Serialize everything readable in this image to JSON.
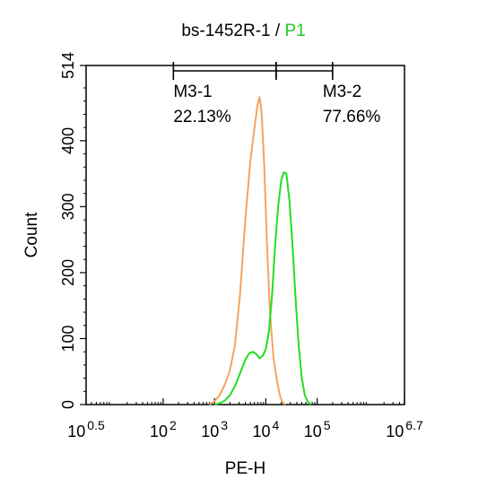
{
  "chart_data": {
    "type": "line",
    "title": {
      "sample": "bs-1452R-1",
      "separator": " / ",
      "gate": "P1",
      "gate_color": "#22cc22"
    },
    "xlabel": "PE-H",
    "ylabel": "Count",
    "x_scale": "log10",
    "xlim_exp": [
      0.5,
      6.7
    ],
    "ylim": [
      0,
      514
    ],
    "x_tick_exps": [
      0.5,
      2,
      3,
      4,
      5,
      6.7
    ],
    "x_tick_labels": [
      {
        "base": "10",
        "exp": "0.5"
      },
      {
        "base": "10",
        "exp": "2"
      },
      {
        "base": "10",
        "exp": "3"
      },
      {
        "base": "10",
        "exp": "4"
      },
      {
        "base": "10",
        "exp": "5"
      },
      {
        "base": "10",
        "exp": "6.7"
      }
    ],
    "y_ticks": [
      0,
      100,
      200,
      300,
      400,
      514
    ],
    "y_tick_labels": [
      "0",
      "100",
      "200",
      "300",
      "400",
      "514"
    ],
    "series": [
      {
        "color": "#f4a460",
        "points": [
          [
            2.9,
            0
          ],
          [
            3.0,
            5
          ],
          [
            3.1,
            14
          ],
          [
            3.2,
            30
          ],
          [
            3.3,
            52
          ],
          [
            3.4,
            90
          ],
          [
            3.5,
            170
          ],
          [
            3.6,
            280
          ],
          [
            3.7,
            370
          ],
          [
            3.78,
            420
          ],
          [
            3.84,
            455
          ],
          [
            3.88,
            466
          ],
          [
            3.92,
            440
          ],
          [
            3.97,
            360
          ],
          [
            4.02,
            250
          ],
          [
            4.08,
            140
          ],
          [
            4.15,
            70
          ],
          [
            4.22,
            35
          ],
          [
            4.28,
            12
          ],
          [
            4.33,
            3
          ],
          [
            4.38,
            0
          ]
        ]
      },
      {
        "color": "#22dd22",
        "points": [
          [
            3.0,
            0
          ],
          [
            3.1,
            2
          ],
          [
            3.2,
            6
          ],
          [
            3.3,
            14
          ],
          [
            3.4,
            28
          ],
          [
            3.5,
            48
          ],
          [
            3.6,
            68
          ],
          [
            3.68,
            78
          ],
          [
            3.75,
            80
          ],
          [
            3.82,
            76
          ],
          [
            3.88,
            70
          ],
          [
            3.94,
            74
          ],
          [
            4.0,
            84
          ],
          [
            4.06,
            110
          ],
          [
            4.12,
            165
          ],
          [
            4.18,
            240
          ],
          [
            4.24,
            300
          ],
          [
            4.3,
            340
          ],
          [
            4.35,
            352
          ],
          [
            4.4,
            350
          ],
          [
            4.46,
            310
          ],
          [
            4.52,
            240
          ],
          [
            4.58,
            160
          ],
          [
            4.64,
            90
          ],
          [
            4.7,
            40
          ],
          [
            4.76,
            14
          ],
          [
            4.82,
            4
          ],
          [
            4.88,
            0
          ]
        ]
      }
    ],
    "markers": [
      {
        "label": "M3-1",
        "percent": "22.13%",
        "range_exp": [
          2.2,
          4.2
        ]
      },
      {
        "label": "M3-2",
        "percent": "77.66%",
        "range_exp": [
          4.2,
          5.3
        ]
      }
    ]
  }
}
